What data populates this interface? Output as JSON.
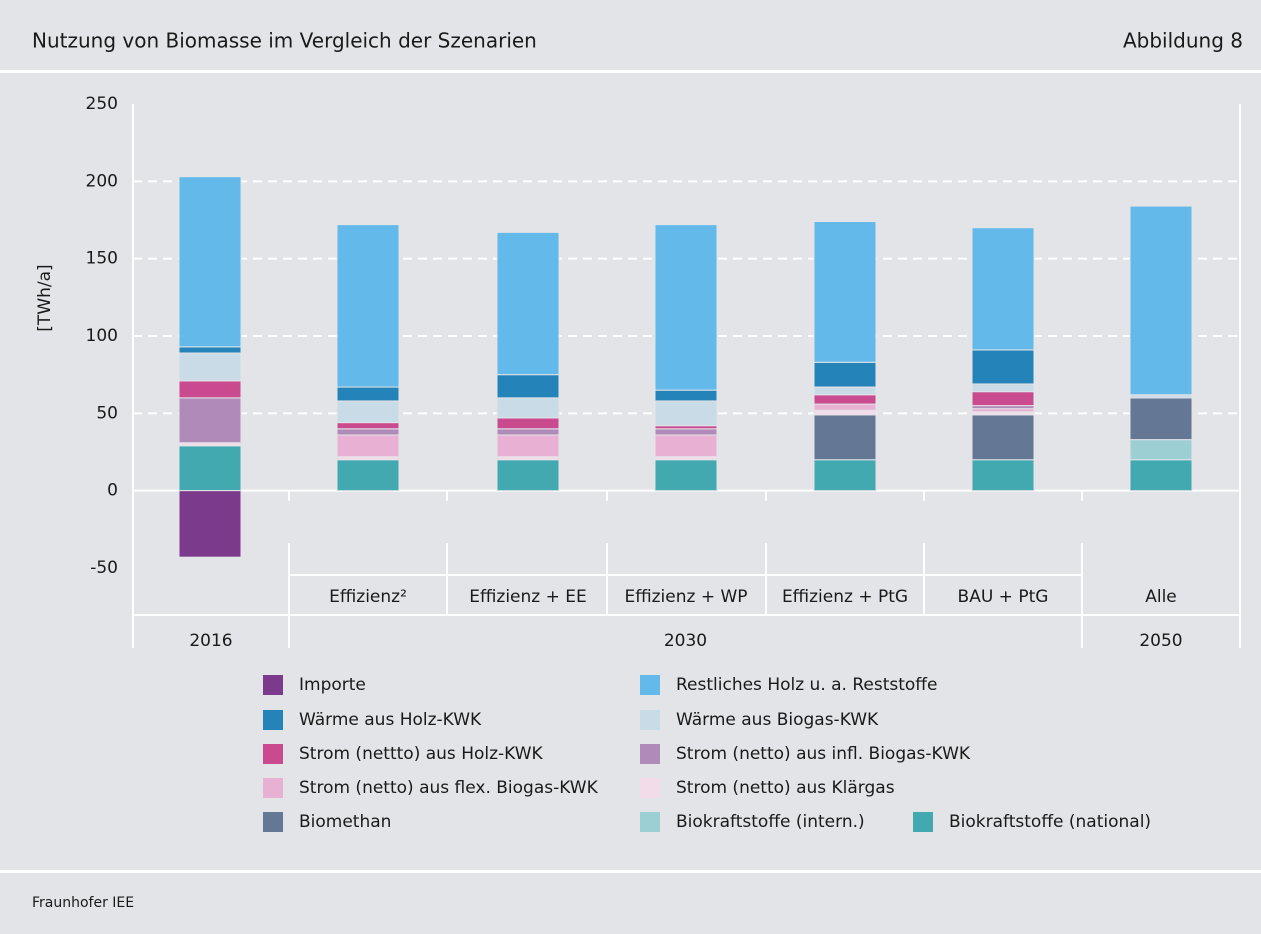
{
  "chart_data": {
    "type": "stacked-bar",
    "title": "Nutzung von Biomasse im Vergleich der Szenarien",
    "figure_label": "Abbildung 8",
    "y_label": "[TWh/a]",
    "source": "Fraunhofer IEE",
    "categories": [
      null,
      "Effizienz²",
      "Effizienz + EE",
      "Effizienz + WP",
      "Effizienz + PtG",
      "BAU + PtG",
      "Alle"
    ],
    "groups": [
      {
        "name": "2016",
        "size": 1
      },
      {
        "name": "2030",
        "size": 5
      },
      {
        "name": "2050",
        "size": 1
      }
    ],
    "ylim": [
      -50,
      250
    ],
    "yticks": [
      -50,
      0,
      50,
      100,
      150,
      200,
      250
    ],
    "grid": true,
    "series": [
      {
        "name": "Importe",
        "color": "#7b3a8b",
        "values": [
          -43,
          0,
          0,
          0,
          0,
          0,
          0
        ]
      },
      {
        "name": "Restliches Holz u. a. Reststoffe",
        "color": "#63b9e9",
        "values": [
          110,
          105,
          92,
          107,
          91,
          79,
          122
        ]
      },
      {
        "name": "Wärme aus Holz-KWK",
        "color": "#2483b8",
        "values": [
          4,
          9,
          15,
          7,
          16,
          22,
          0
        ]
      },
      {
        "name": "Wärme aus Biogas-KWK",
        "color": "#c9dbe6",
        "values": [
          18,
          14,
          13,
          16,
          5,
          5,
          2
        ]
      },
      {
        "name": "Strom (nettto) aus Holz-KWK",
        "color": "#c94a8f",
        "values": [
          11,
          4,
          7,
          2,
          6,
          9,
          0
        ]
      },
      {
        "name": "Strom (netto) aus infl. Biogas-KWK",
        "color": "#b08ab8",
        "values": [
          29,
          4,
          4,
          4,
          0,
          2,
          0
        ]
      },
      {
        "name": "Strom (netto) aus flex. Biogas-KWK",
        "color": "#e8b0d3",
        "values": [
          0,
          14,
          14,
          14,
          4,
          2,
          0
        ]
      },
      {
        "name": "Strom (netto) aus Klärgas",
        "color": "#f3dcea",
        "values": [
          2,
          2,
          2,
          2,
          3,
          2,
          0
        ]
      },
      {
        "name": "Biomethan",
        "color": "#647896",
        "values": [
          0,
          0,
          0,
          0,
          29,
          29,
          27
        ]
      },
      {
        "name": "Biokraftstoffe (intern.)",
        "color": "#9ccfd3",
        "values": [
          0,
          0,
          0,
          0,
          0,
          0,
          13
        ]
      },
      {
        "name": "Biokraftstoffe (national)",
        "color": "#42a9b1",
        "values": [
          29,
          20,
          20,
          20,
          20,
          20,
          20
        ]
      }
    ]
  }
}
